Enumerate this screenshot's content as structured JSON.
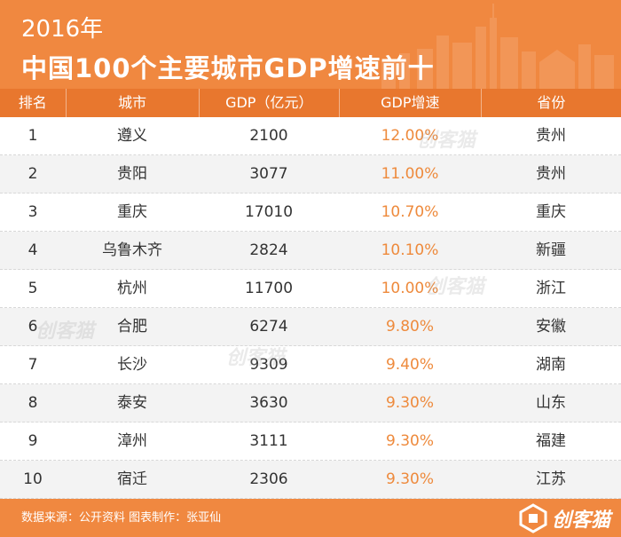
{
  "header": {
    "year": "2016年",
    "title": "中国100个主要城市GDP增速前十"
  },
  "chart_data": {
    "type": "table",
    "columns": [
      "排名",
      "城市",
      "GDP（亿元）",
      "GDP增速",
      "省份"
    ],
    "rows": [
      {
        "rank": "1",
        "city": "遵义",
        "gdp": "2100",
        "growth": "12.00%",
        "province": "贵州"
      },
      {
        "rank": "2",
        "city": "贵阳",
        "gdp": "3077",
        "growth": "11.00%",
        "province": "贵州"
      },
      {
        "rank": "3",
        "city": "重庆",
        "gdp": "17010",
        "growth": "10.70%",
        "province": "重庆"
      },
      {
        "rank": "4",
        "city": "乌鲁木齐",
        "gdp": "2824",
        "growth": "10.10%",
        "province": "新疆"
      },
      {
        "rank": "5",
        "city": "杭州",
        "gdp": "11700",
        "growth": "10.00%",
        "province": "浙江"
      },
      {
        "rank": "6",
        "city": "合肥",
        "gdp": "6274",
        "growth": "9.80%",
        "province": "安徽"
      },
      {
        "rank": "7",
        "city": "长沙",
        "gdp": "9309",
        "growth": "9.40%",
        "province": "湖南"
      },
      {
        "rank": "8",
        "city": "泰安",
        "gdp": "3630",
        "growth": "9.30%",
        "province": "山东"
      },
      {
        "rank": "9",
        "city": "漳州",
        "gdp": "3111",
        "growth": "9.30%",
        "province": "福建"
      },
      {
        "rank": "10",
        "city": "宿迁",
        "gdp": "2306",
        "growth": "9.30%",
        "province": "江苏"
      }
    ]
  },
  "footer": {
    "source": "数据来源：公开资料   图表制作：张亚仙",
    "logo": "创客猫"
  },
  "watermark": "创客猫",
  "colors": {
    "header_bg": "#f08840",
    "table_header_bg": "#e8772e",
    "growth_text": "#ee8a3c",
    "stripe": "#f3f3f3"
  }
}
